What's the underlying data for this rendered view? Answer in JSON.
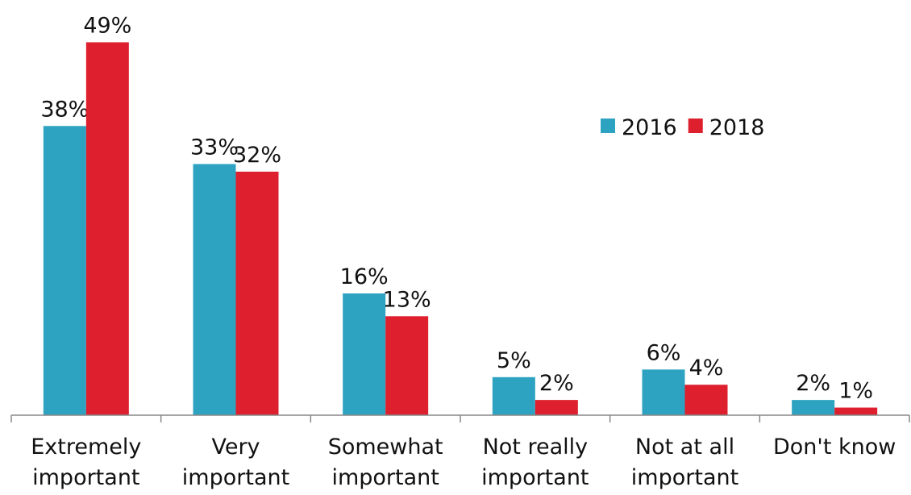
{
  "chart_data": {
    "type": "bar",
    "categories": [
      [
        "Extremely",
        "important"
      ],
      [
        "Very",
        "important"
      ],
      [
        "Somewhat",
        "important"
      ],
      [
        "Not really",
        "important"
      ],
      [
        "Not at all",
        "important"
      ],
      [
        "Don't know"
      ]
    ],
    "series": [
      {
        "name": "2016",
        "color": "#2ea3c1",
        "values": [
          38,
          33,
          16,
          5,
          6,
          2
        ],
        "value_labels": [
          "38%",
          "33%",
          "16%",
          "5%",
          "6%",
          "2%"
        ]
      },
      {
        "name": "2018",
        "color": "#dd1f2e",
        "values": [
          49,
          32,
          13,
          2,
          4,
          1
        ],
        "value_labels": [
          "49%",
          "32%",
          "13%",
          "2%",
          "4%",
          "1%"
        ]
      }
    ],
    "ylim": [
      0,
      50
    ],
    "legend": "upper right"
  }
}
